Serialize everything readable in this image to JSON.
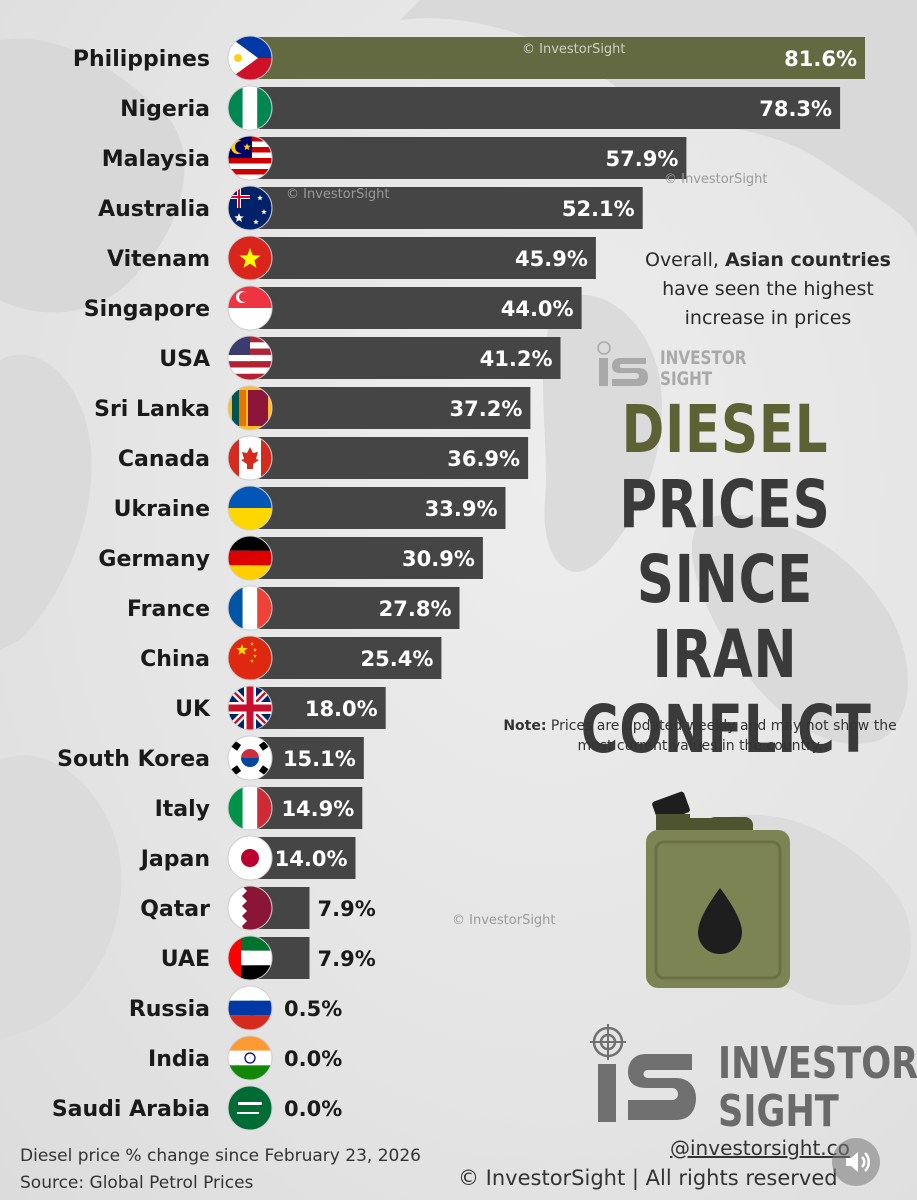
{
  "chart_data": {
    "type": "bar",
    "orientation": "horizontal",
    "title": "DIESEL PRICES SINCE IRAN CONFLICT",
    "title_lines": [
      "DIESEL",
      "PRICES",
      "SINCE IRAN",
      "CONFLICT"
    ],
    "categories": [
      "Philippines",
      "Nigeria",
      "Malaysia",
      "Australia",
      "Vitenam",
      "Singapore",
      "USA",
      "Sri Lanka",
      "Canada",
      "Ukraine",
      "Germany",
      "France",
      "China",
      "UK",
      "South Korea",
      "Italy",
      "Japan",
      "Qatar",
      "UAE",
      "Russia",
      "India",
      "Saudi Arabia"
    ],
    "values": [
      81.6,
      78.3,
      57.9,
      52.1,
      45.9,
      44.0,
      41.2,
      37.2,
      36.9,
      33.9,
      30.9,
      27.8,
      25.4,
      18.0,
      15.1,
      14.9,
      14.0,
      7.9,
      7.9,
      0.5,
      0.0,
      0.0
    ],
    "value_labels": [
      "81.6%",
      "78.3%",
      "57.9%",
      "52.1%",
      "45.9%",
      "44.0%",
      "41.2%",
      "37.2%",
      "36.9%",
      "33.9%",
      "30.9%",
      "27.8%",
      "25.4%",
      "18.0%",
      "15.1%",
      "14.9%",
      "14.0%",
      "7.9%",
      "7.9%",
      "0.5%",
      "0.0%",
      "0.0%"
    ],
    "flag_icons": [
      "philippines-flag-icon",
      "nigeria-flag-icon",
      "malaysia-flag-icon",
      "australia-flag-icon",
      "vietnam-flag-icon",
      "singapore-flag-icon",
      "usa-flag-icon",
      "sri-lanka-flag-icon",
      "canada-flag-icon",
      "ukraine-flag-icon",
      "germany-flag-icon",
      "france-flag-icon",
      "china-flag-icon",
      "uk-flag-icon",
      "south-korea-flag-icon",
      "italy-flag-icon",
      "japan-flag-icon",
      "qatar-flag-icon",
      "uae-flag-icon",
      "russia-flag-icon",
      "india-flag-icon",
      "saudi-arabia-flag-icon"
    ],
    "xlim": [
      0,
      81.6
    ],
    "unit": "%",
    "highlight_index": 0,
    "colors": {
      "highlight": "#636941",
      "bar": "#454545",
      "label_inside": "#ffffff",
      "label_outside": "#1a1a1a"
    }
  },
  "subtitle": {
    "pre": "Overall, ",
    "bold": "Asian countries",
    "post": " have seen the highest increase in prices"
  },
  "note": {
    "bold": "Note:",
    "text": " Prices are updated weekly and may not show the most current values in the country."
  },
  "watermarks": [
    "© InvestorSight",
    "© InvestorSight",
    "© InvestorSight",
    "© InvestorSight"
  ],
  "logo": {
    "line1": "INVESTOR",
    "line2": "SIGHT",
    "mark": "IS"
  },
  "footer": {
    "caption": "Diesel price % change since February 23, 2026",
    "source": "Source: Global Petrol Prices",
    "handle": "@investorsight.co",
    "rights": "© InvestorSight |  All rights reserved"
  },
  "icons": {
    "can": "diesel-jerrycan-icon",
    "mute": "speaker-mute-icon"
  }
}
